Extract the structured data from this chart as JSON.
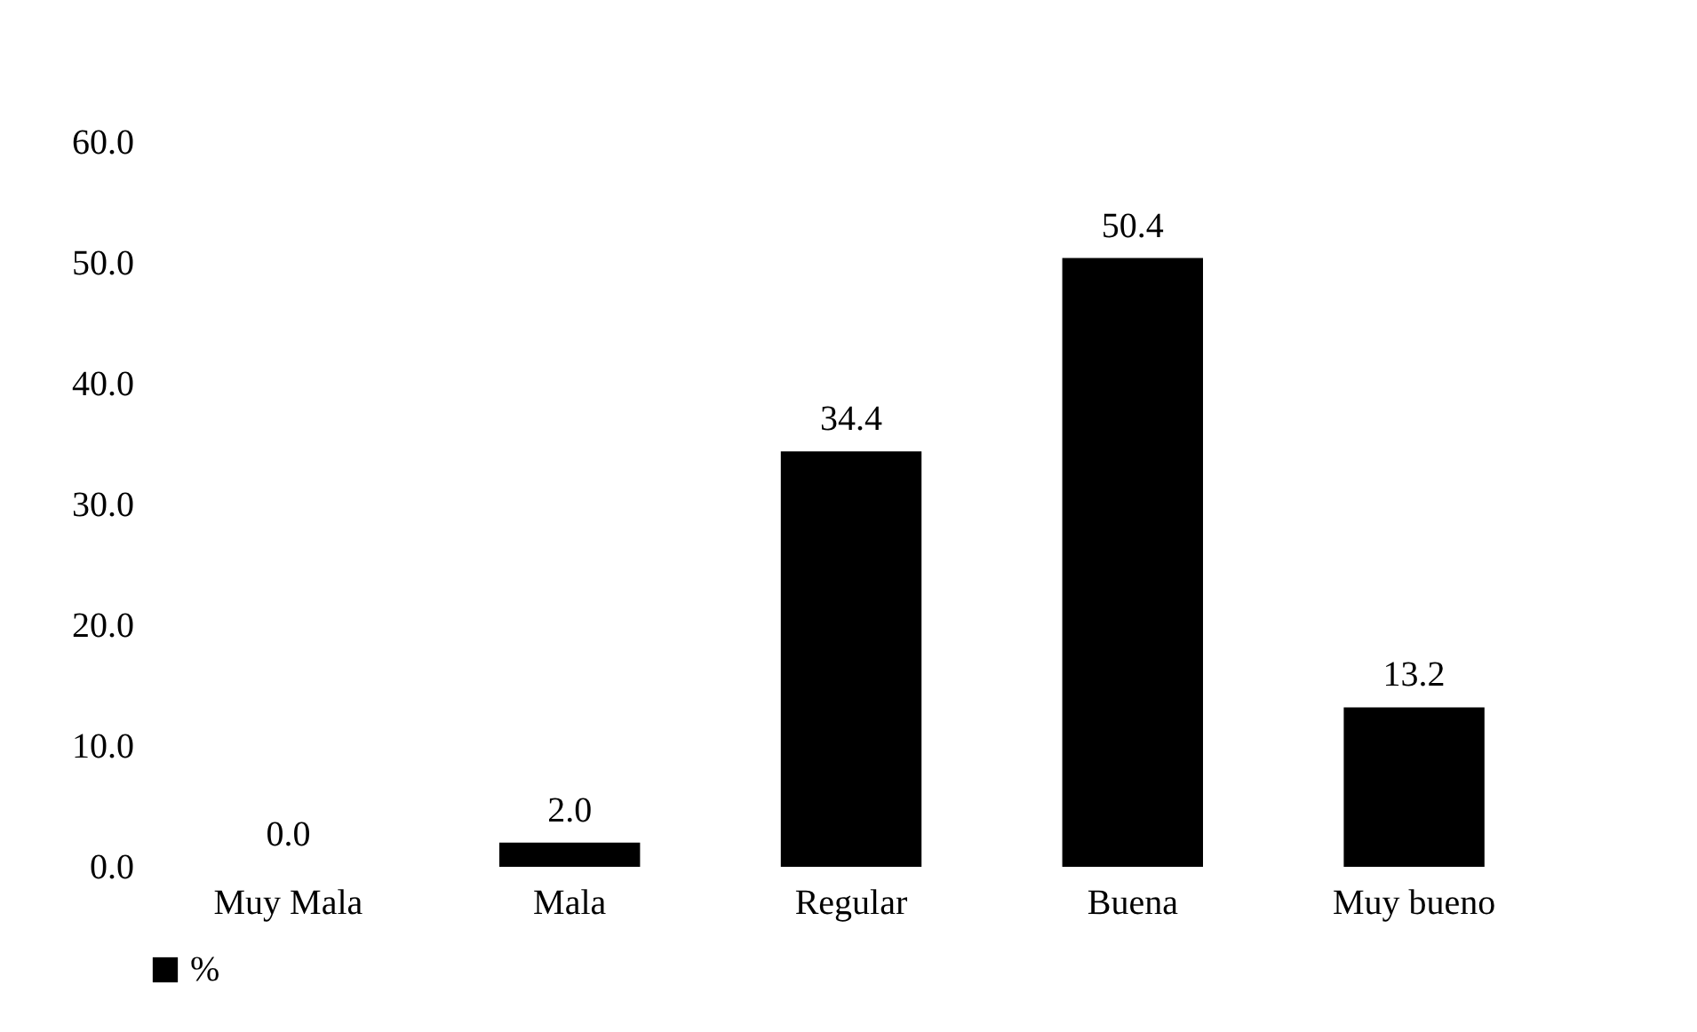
{
  "chart_data": {
    "type": "bar",
    "categories": [
      "Muy Mala",
      "Mala",
      "Regular",
      "Buena",
      "Muy bueno"
    ],
    "series": [
      {
        "name": "%",
        "color": "#000000",
        "values": [
          0.0,
          2.0,
          34.4,
          50.4,
          13.2
        ],
        "value_labels": [
          "0.0",
          "2.0",
          "34.4",
          "50.4",
          "13.2"
        ]
      }
    ],
    "ylim": [
      0,
      60
    ],
    "yticks": [
      {
        "value": 0,
        "label": "0.0"
      },
      {
        "value": 10,
        "label": "10.0"
      },
      {
        "value": 20,
        "label": "20.0"
      },
      {
        "value": 30,
        "label": "30.0"
      },
      {
        "value": 40,
        "label": "40.0"
      },
      {
        "value": 50,
        "label": "50.0"
      },
      {
        "value": 60,
        "label": "60.0"
      }
    ],
    "legend": "bottom",
    "grid": false
  }
}
